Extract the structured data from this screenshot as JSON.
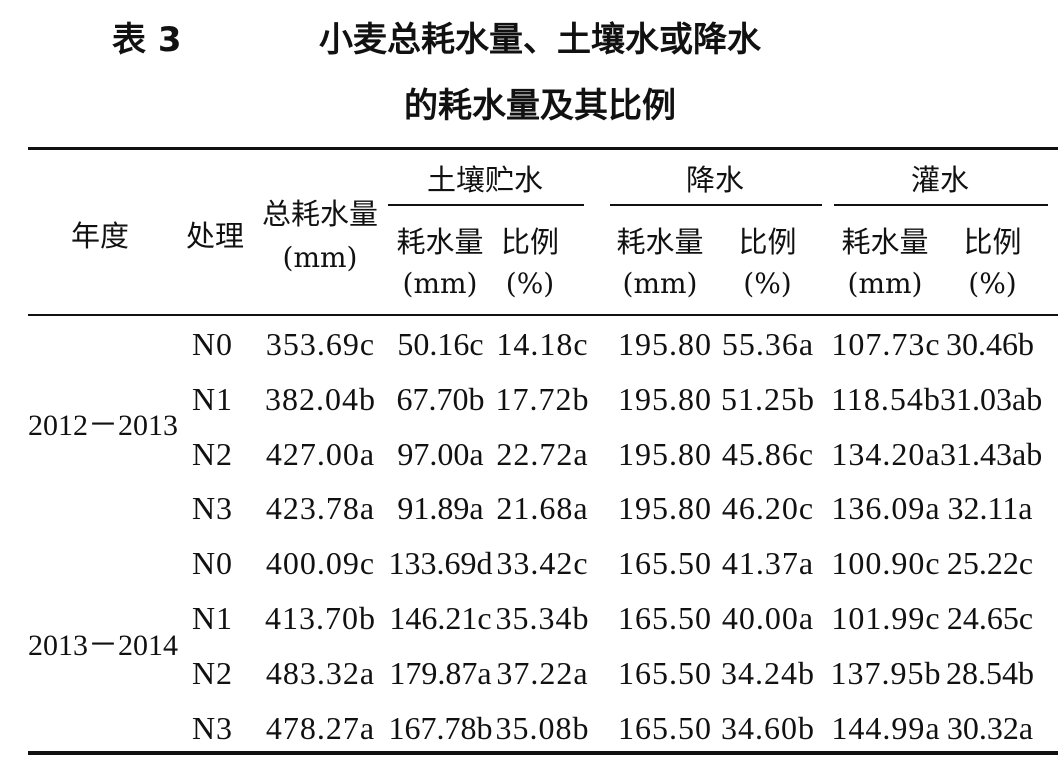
{
  "title": {
    "label": "表 3",
    "line1": "小麦总耗水量、土壤水或降水",
    "line2": "的耗水量及其比例"
  },
  "headers": {
    "year": "年度",
    "treatment": "处理",
    "total": "总耗水量",
    "total_unit": "(mm)",
    "soil": "土壤贮水",
    "rain": "降水",
    "irrigation": "灌水",
    "consumption": "耗水量",
    "consumption_unit": "(mm)",
    "ratio": "比例",
    "ratio_unit": "(%)"
  },
  "groups": [
    {
      "year": "2012－2013"
    },
    {
      "year": "2013－2014"
    }
  ],
  "rows": [
    {
      "treatment": "N0",
      "total": "353.69c",
      "soil_amt": "50.16c",
      "soil_pct": "14.18c",
      "rain_amt": "195.80",
      "rain_pct": "55.36a",
      "irr_amt": "107.73c",
      "irr_pct": "30.46b"
    },
    {
      "treatment": "N1",
      "total": "382.04b",
      "soil_amt": "67.70b",
      "soil_pct": "17.72b",
      "rain_amt": "195.80",
      "rain_pct": "51.25b",
      "irr_amt": "118.54b",
      "irr_pct": "31.03ab"
    },
    {
      "treatment": "N2",
      "total": "427.00a",
      "soil_amt": "97.00a",
      "soil_pct": "22.72a",
      "rain_amt": "195.80",
      "rain_pct": "45.86c",
      "irr_amt": "134.20a",
      "irr_pct": "31.43ab"
    },
    {
      "treatment": "N3",
      "total": "423.78a",
      "soil_amt": "91.89a",
      "soil_pct": "21.68a",
      "rain_amt": "195.80",
      "rain_pct": "46.20c",
      "irr_amt": "136.09a",
      "irr_pct": "32.11a"
    },
    {
      "treatment": "N0",
      "total": "400.09c",
      "soil_amt": "133.69d",
      "soil_pct": "33.42c",
      "rain_amt": "165.50",
      "rain_pct": "41.37a",
      "irr_amt": "100.90c",
      "irr_pct": "25.22c"
    },
    {
      "treatment": "N1",
      "total": "413.70b",
      "soil_amt": "146.21c",
      "soil_pct": "35.34b",
      "rain_amt": "165.50",
      "rain_pct": "40.00a",
      "irr_amt": "101.99c",
      "irr_pct": "24.65c"
    },
    {
      "treatment": "N2",
      "total": "483.32a",
      "soil_amt": "179.87a",
      "soil_pct": "37.22a",
      "rain_amt": "165.50",
      "rain_pct": "34.24b",
      "irr_amt": "137.95b",
      "irr_pct": "28.54b"
    },
    {
      "treatment": "N3",
      "total": "478.27a",
      "soil_amt": "167.78b",
      "soil_pct": "35.08b",
      "rain_amt": "165.50",
      "rain_pct": "34.60b",
      "irr_amt": "144.99a",
      "irr_pct": "30.32a"
    }
  ]
}
